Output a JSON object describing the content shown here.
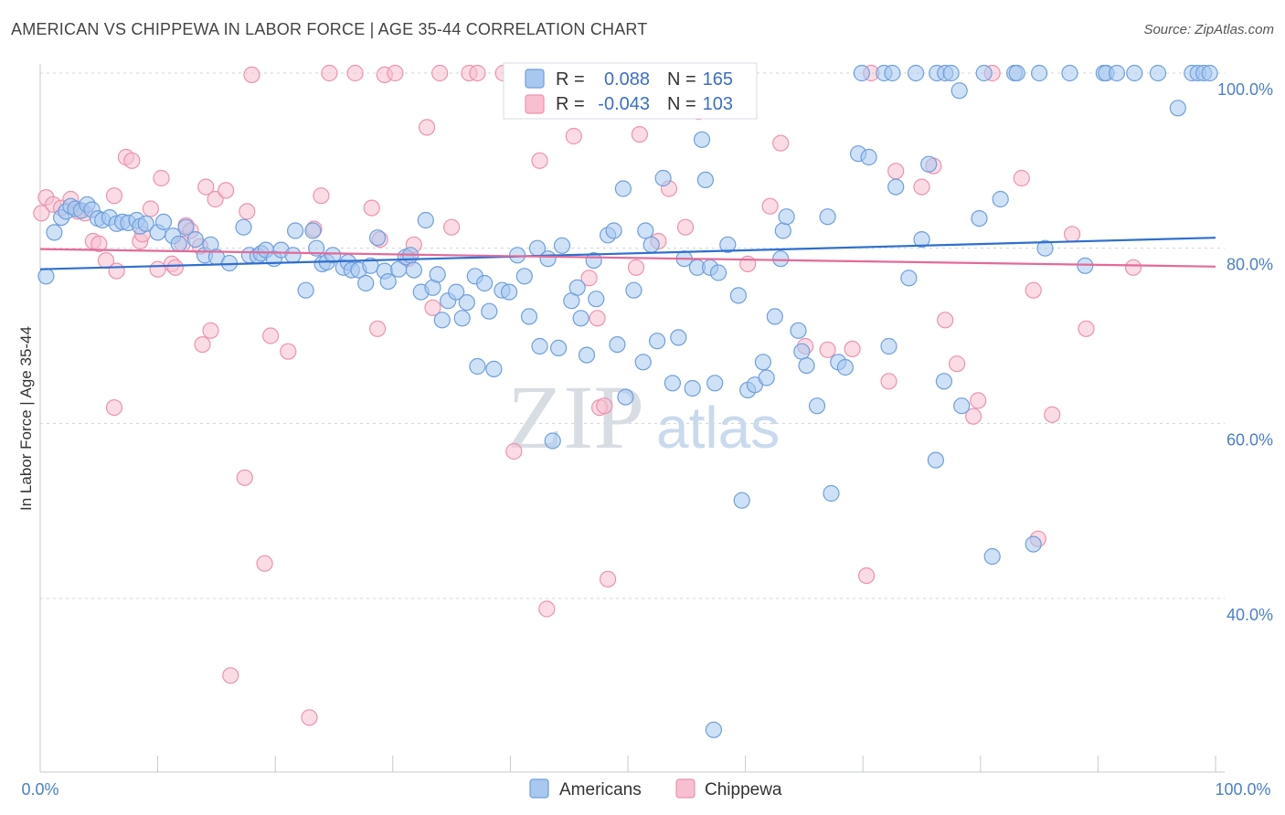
{
  "title": "AMERICAN VS CHIPPEWA IN LABOR FORCE | AGE 35-44 CORRELATION CHART",
  "source": "Source: ZipAtlas.com",
  "watermark": {
    "zip": "ZIP",
    "atlas": "atlas"
  },
  "colors": {
    "americans_fill": "#a8c8f0",
    "americans_stroke": "#6f9fdc",
    "americans_line": "#2f6fcf",
    "chippewa_fill": "#f8bfd0",
    "chippewa_stroke": "#ee92ae",
    "chippewa_line": "#e56a98",
    "grid": "#d0d4da",
    "axis_text": "#4a7fcc"
  },
  "legend": {
    "r_label": "R =",
    "n_label": "N =",
    "americans_r": "0.088",
    "americans_n": "165",
    "chippewa_r": "-0.043",
    "chippewa_n": "103"
  },
  "bottom_legend": {
    "americans": "Americans",
    "chippewa": "Chippewa"
  },
  "chart_data": {
    "type": "scatter",
    "title": "AMERICAN VS CHIPPEWA IN LABOR FORCE | AGE 35-44 CORRELATION CHART",
    "xlabel": "",
    "ylabel": "In Labor Force | Age 35-44",
    "xlim": [
      0,
      100
    ],
    "ylim": [
      21,
      101
    ],
    "x_tick_labels": [
      "0.0%",
      "100.0%"
    ],
    "y_ticks": [
      40,
      60,
      80,
      100
    ],
    "y_tick_labels": [
      "40.0%",
      "60.0%",
      "80.0%",
      "100.0%"
    ],
    "grid": true,
    "series": [
      {
        "name": "Americans",
        "r": 0.088,
        "n": 165,
        "trend": {
          "x": [
            0,
            100
          ],
          "y": [
            77.6,
            81.2
          ]
        },
        "points": [
          [
            0.5,
            76.8
          ],
          [
            1.2,
            81.8
          ],
          [
            1.8,
            83.5
          ],
          [
            2.2,
            84.2
          ],
          [
            2.6,
            84.8
          ],
          [
            3.0,
            84.5
          ],
          [
            3.5,
            84.3
          ],
          [
            4.0,
            85.0
          ],
          [
            4.4,
            84.4
          ],
          [
            4.9,
            83.4
          ],
          [
            5.3,
            83.2
          ],
          [
            5.9,
            83.5
          ],
          [
            6.5,
            82.8
          ],
          [
            7.0,
            83.0
          ],
          [
            7.5,
            82.9
          ],
          [
            8.2,
            83.2
          ],
          [
            8.5,
            82.5
          ],
          [
            9.0,
            82.8
          ],
          [
            10.0,
            81.8
          ],
          [
            10.5,
            83.0
          ],
          [
            11.3,
            81.4
          ],
          [
            11.8,
            80.5
          ],
          [
            12.4,
            82.4
          ],
          [
            13.2,
            81.0
          ],
          [
            14.0,
            79.2
          ],
          [
            14.5,
            80.4
          ],
          [
            15.0,
            79.0
          ],
          [
            16.1,
            78.3
          ],
          [
            17.3,
            82.4
          ],
          [
            17.8,
            79.2
          ],
          [
            18.5,
            79.1
          ],
          [
            18.8,
            79.4
          ],
          [
            19.2,
            79.8
          ],
          [
            19.9,
            78.8
          ],
          [
            20.5,
            79.8
          ],
          [
            21.5,
            79.2
          ],
          [
            21.7,
            82.0
          ],
          [
            22.6,
            75.2
          ],
          [
            23.2,
            82.0
          ],
          [
            23.5,
            80.0
          ],
          [
            24.0,
            78.2
          ],
          [
            24.4,
            78.4
          ],
          [
            24.9,
            79.2
          ],
          [
            25.8,
            77.8
          ],
          [
            26.2,
            78.4
          ],
          [
            26.5,
            77.5
          ],
          [
            27.1,
            77.5
          ],
          [
            27.7,
            76.0
          ],
          [
            28.1,
            78.0
          ],
          [
            28.7,
            81.2
          ],
          [
            29.3,
            77.4
          ],
          [
            29.6,
            76.2
          ],
          [
            30.5,
            77.6
          ],
          [
            31.1,
            79.0
          ],
          [
            31.5,
            79.2
          ],
          [
            31.8,
            77.5
          ],
          [
            32.4,
            75.0
          ],
          [
            32.8,
            83.2
          ],
          [
            33.4,
            75.5
          ],
          [
            33.8,
            77.0
          ],
          [
            34.2,
            71.8
          ],
          [
            34.7,
            74.0
          ],
          [
            35.4,
            75.0
          ],
          [
            35.9,
            72.0
          ],
          [
            36.3,
            73.8
          ],
          [
            37.0,
            76.8
          ],
          [
            37.2,
            66.5
          ],
          [
            37.8,
            76.0
          ],
          [
            38.2,
            72.8
          ],
          [
            38.6,
            66.2
          ],
          [
            39.3,
            75.2
          ],
          [
            39.9,
            75.0
          ],
          [
            40.6,
            79.2
          ],
          [
            41.2,
            76.8
          ],
          [
            41.6,
            72.2
          ],
          [
            42.3,
            80.0
          ],
          [
            42.5,
            68.8
          ],
          [
            43.2,
            78.8
          ],
          [
            43.6,
            58.0
          ],
          [
            44.1,
            68.6
          ],
          [
            44.4,
            80.3
          ],
          [
            45.2,
            74.0
          ],
          [
            45.7,
            75.5
          ],
          [
            46.0,
            72.0
          ],
          [
            46.5,
            67.8
          ],
          [
            47.1,
            78.6
          ],
          [
            47.3,
            74.2
          ],
          [
            48.3,
            81.5
          ],
          [
            48.8,
            82.0
          ],
          [
            49.1,
            69.0
          ],
          [
            49.6,
            86.8
          ],
          [
            49.8,
            63.0
          ],
          [
            50.5,
            75.2
          ],
          [
            51.5,
            82.0
          ],
          [
            51.3,
            67.0
          ],
          [
            52.0,
            80.4
          ],
          [
            52.5,
            69.4
          ],
          [
            53.0,
            88.0
          ],
          [
            53.8,
            64.6
          ],
          [
            54.3,
            69.8
          ],
          [
            54.8,
            78.8
          ],
          [
            55.5,
            64.0
          ],
          [
            55.9,
            77.8
          ],
          [
            56.3,
            92.4
          ],
          [
            56.6,
            87.8
          ],
          [
            57.0,
            77.8
          ],
          [
            57.7,
            77.2
          ],
          [
            57.4,
            64.6
          ],
          [
            57.3,
            25.0
          ],
          [
            58.5,
            80.4
          ],
          [
            59.4,
            74.6
          ],
          [
            59.7,
            51.2
          ],
          [
            60.2,
            63.8
          ],
          [
            60.8,
            64.4
          ],
          [
            61.5,
            67.0
          ],
          [
            61.8,
            65.2
          ],
          [
            62.5,
            72.2
          ],
          [
            63.0,
            78.8
          ],
          [
            63.2,
            82.0
          ],
          [
            63.5,
            83.6
          ],
          [
            64.5,
            70.6
          ],
          [
            64.8,
            68.2
          ],
          [
            65.2,
            66.6
          ],
          [
            66.1,
            62.0
          ],
          [
            67.0,
            83.6
          ],
          [
            67.3,
            52.0
          ],
          [
            67.9,
            67.0
          ],
          [
            68.5,
            66.4
          ],
          [
            69.6,
            90.8
          ],
          [
            69.9,
            100.0
          ],
          [
            70.5,
            90.4
          ],
          [
            71.8,
            100.0
          ],
          [
            72.2,
            68.8
          ],
          [
            72.5,
            100.0
          ],
          [
            72.8,
            87.0
          ],
          [
            73.9,
            76.6
          ],
          [
            74.5,
            100.0
          ],
          [
            75.0,
            81.0
          ],
          [
            75.6,
            89.6
          ],
          [
            76.3,
            100.0
          ],
          [
            77.0,
            100.0
          ],
          [
            77.5,
            100.0
          ],
          [
            76.2,
            55.8
          ],
          [
            76.9,
            64.8
          ],
          [
            78.2,
            98.0
          ],
          [
            78.4,
            62.0
          ],
          [
            79.9,
            83.4
          ],
          [
            80.3,
            100.0
          ],
          [
            81.0,
            44.8
          ],
          [
            81.7,
            85.6
          ],
          [
            82.9,
            100.0
          ],
          [
            83.1,
            100.0
          ],
          [
            84.5,
            46.2
          ],
          [
            85.0,
            100.0
          ],
          [
            85.5,
            80.0
          ],
          [
            87.6,
            100.0
          ],
          [
            88.9,
            78.0
          ],
          [
            90.5,
            100.0
          ],
          [
            90.7,
            100.0
          ],
          [
            91.6,
            100.0
          ],
          [
            93.1,
            100.0
          ],
          [
            95.1,
            100.0
          ],
          [
            96.8,
            96.0
          ],
          [
            98.0,
            100.0
          ],
          [
            98.5,
            100.0
          ],
          [
            99.0,
            100.0
          ],
          [
            99.5,
            100.0
          ]
        ]
      },
      {
        "name": "Chippewa",
        "r": -0.043,
        "n": 103,
        "trend": {
          "x": [
            0,
            100
          ],
          "y": [
            79.9,
            77.9
          ]
        },
        "points": [
          [
            0.1,
            84.0
          ],
          [
            0.5,
            85.8
          ],
          [
            1.1,
            85.0
          ],
          [
            1.8,
            84.6
          ],
          [
            2.6,
            85.6
          ],
          [
            3.2,
            84.2
          ],
          [
            3.8,
            84.0
          ],
          [
            4.5,
            80.8
          ],
          [
            5.0,
            80.5
          ],
          [
            5.6,
            78.6
          ],
          [
            6.3,
            86.0
          ],
          [
            6.5,
            77.4
          ],
          [
            6.3,
            61.8
          ],
          [
            7.3,
            90.4
          ],
          [
            7.8,
            90.0
          ],
          [
            8.5,
            80.8
          ],
          [
            8.7,
            81.6
          ],
          [
            9.4,
            84.5
          ],
          [
            10.0,
            77.6
          ],
          [
            10.3,
            88.0
          ],
          [
            11.2,
            78.2
          ],
          [
            11.5,
            77.8
          ],
          [
            12.1,
            80.5
          ],
          [
            12.4,
            82.6
          ],
          [
            12.8,
            82.0
          ],
          [
            13.6,
            80.2
          ],
          [
            13.8,
            69.0
          ],
          [
            14.1,
            87.0
          ],
          [
            14.5,
            70.6
          ],
          [
            14.9,
            85.6
          ],
          [
            15.8,
            86.6
          ],
          [
            16.2,
            31.2
          ],
          [
            17.4,
            53.8
          ],
          [
            17.6,
            84.2
          ],
          [
            18.0,
            99.8
          ],
          [
            19.1,
            44.0
          ],
          [
            19.6,
            70.0
          ],
          [
            21.1,
            68.2
          ],
          [
            22.9,
            26.4
          ],
          [
            23.3,
            82.2
          ],
          [
            23.9,
            86.0
          ],
          [
            24.6,
            100.0
          ],
          [
            26.8,
            100.0
          ],
          [
            28.2,
            84.6
          ],
          [
            28.7,
            70.8
          ],
          [
            28.9,
            81.0
          ],
          [
            29.3,
            99.8
          ],
          [
            30.2,
            100.0
          ],
          [
            31.3,
            78.8
          ],
          [
            31.8,
            80.4
          ],
          [
            32.9,
            93.8
          ],
          [
            33.4,
            73.2
          ],
          [
            34.0,
            100.0
          ],
          [
            35.0,
            82.4
          ],
          [
            36.5,
            100.0
          ],
          [
            37.2,
            100.0
          ],
          [
            39.4,
            100.0
          ],
          [
            40.3,
            56.8
          ],
          [
            41.8,
            100.0
          ],
          [
            42.5,
            90.0
          ],
          [
            43.1,
            38.8
          ],
          [
            43.7,
            100.0
          ],
          [
            44.6,
            100.0
          ],
          [
            45.4,
            92.8
          ],
          [
            46.7,
            76.6
          ],
          [
            47.4,
            72.0
          ],
          [
            47.6,
            61.8
          ],
          [
            48.0,
            62.0
          ],
          [
            48.3,
            42.2
          ],
          [
            50.7,
            77.8
          ],
          [
            51.0,
            93.0
          ],
          [
            51.3,
            100.0
          ],
          [
            52.3,
            100.0
          ],
          [
            52.6,
            80.8
          ],
          [
            53.5,
            86.8
          ],
          [
            54.9,
            82.4
          ],
          [
            56.0,
            95.6
          ],
          [
            56.7,
            100.0
          ],
          [
            60.0,
            100.0
          ],
          [
            60.2,
            78.2
          ],
          [
            62.1,
            84.8
          ],
          [
            63.0,
            92.0
          ],
          [
            65.1,
            68.8
          ],
          [
            67.0,
            68.4
          ],
          [
            69.1,
            68.5
          ],
          [
            70.3,
            42.6
          ],
          [
            70.7,
            100.0
          ],
          [
            72.2,
            64.8
          ],
          [
            72.8,
            88.8
          ],
          [
            75.0,
            87.0
          ],
          [
            76.0,
            89.4
          ],
          [
            77.0,
            71.8
          ],
          [
            78.0,
            66.8
          ],
          [
            79.4,
            60.8
          ],
          [
            79.8,
            62.6
          ],
          [
            81.0,
            100.0
          ],
          [
            83.5,
            88.0
          ],
          [
            84.5,
            75.2
          ],
          [
            84.9,
            46.8
          ],
          [
            86.1,
            61.0
          ],
          [
            87.8,
            81.6
          ],
          [
            89.0,
            70.8
          ],
          [
            93.0,
            77.8
          ]
        ]
      }
    ]
  }
}
